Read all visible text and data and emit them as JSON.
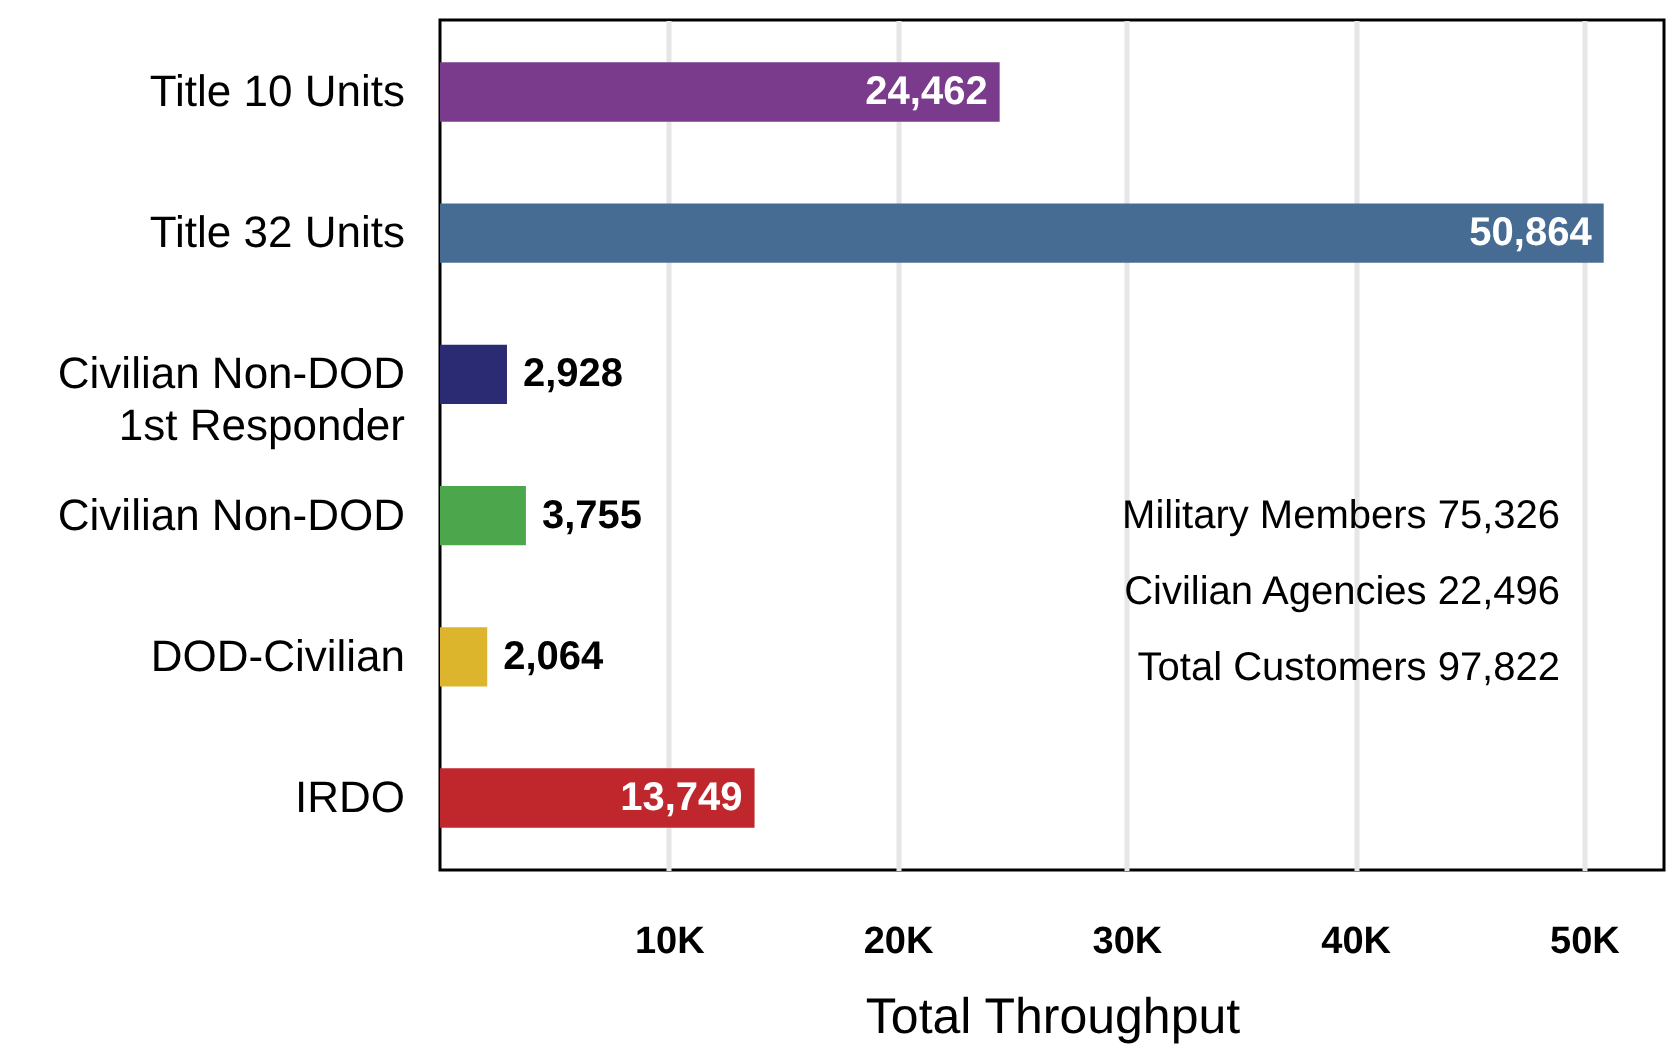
{
  "chart_data": {
    "type": "bar",
    "orientation": "horizontal",
    "xlabel": "Total Throughput",
    "categories": [
      "Title 10 Units",
      "Title 32 Units",
      "Civilian Non-DOD\n1st Responder",
      "Civilian Non-DOD",
      "DOD-Civilian",
      "IRDO"
    ],
    "values": [
      24462,
      50864,
      2928,
      3755,
      2064,
      13749
    ],
    "value_labels": [
      "24,462",
      "50,864",
      "2,928",
      "3,755",
      "2,064",
      "13,749"
    ],
    "colors": [
      "#7a3b8c",
      "#466c94",
      "#2b2b73",
      "#4ba64c",
      "#ddb52c",
      "#c0272d"
    ],
    "xlim": [
      0,
      53500
    ],
    "xticks": [
      {
        "value": 10000,
        "label": "10K"
      },
      {
        "value": 20000,
        "label": "20K"
      },
      {
        "value": 30000,
        "label": "30K"
      },
      {
        "value": 40000,
        "label": "40K"
      },
      {
        "value": 50000,
        "label": "50K"
      }
    ],
    "grid": "x",
    "annotations": [
      "Military Members 75,326",
      "Civilian Agencies 22,496",
      "Total Customers 97,822"
    ]
  }
}
